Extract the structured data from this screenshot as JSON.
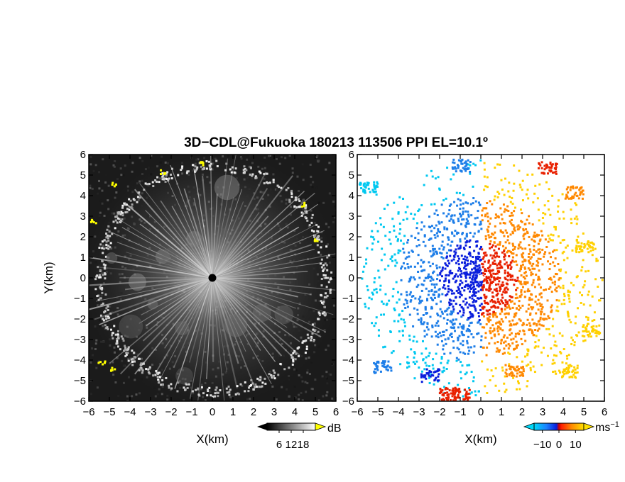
{
  "title": "3D−CDL@Fukuoka 180213 113506 PPI EL=10.1º",
  "chart_data": [
    {
      "type": "heatmap",
      "panel": "left",
      "variable": "backscatter intensity",
      "xlabel": "X(km)",
      "ylabel": "Y(km)",
      "xlim": [
        -6,
        6
      ],
      "ylim": [
        -6,
        6
      ],
      "x_ticks": [
        -6,
        -5,
        -4,
        -3,
        -2,
        -1,
        0,
        1,
        2,
        3,
        4,
        5,
        6
      ],
      "y_ticks": [
        -6,
        -5,
        -4,
        -3,
        -2,
        -1,
        0,
        1,
        2,
        3,
        4,
        5,
        6
      ],
      "colormap": "grayscale (black to white), saturated values yellow",
      "colorbar": {
        "unit": "dB",
        "ticks": [
          6,
          12,
          18
        ],
        "range": [
          0,
          24
        ]
      },
      "features": {
        "radial_streaks_from_origin": true,
        "echo_ring_radius_km": 5.5,
        "radar_position": [
          0,
          0
        ]
      }
    },
    {
      "type": "heatmap",
      "panel": "right",
      "variable": "Doppler radial velocity",
      "xlabel": "X(km)",
      "xlim": [
        -6,
        6
      ],
      "ylim": [
        -6,
        6
      ],
      "x_ticks": [
        -6,
        -5,
        -4,
        -3,
        -2,
        -1,
        0,
        1,
        2,
        3,
        4,
        5,
        6
      ],
      "y_ticks": [
        -6,
        -5,
        -4,
        -3,
        -2,
        -1,
        0,
        1,
        2,
        3,
        4,
        5,
        6
      ],
      "colormap": "diverging: cyan/blue (negative) to red/orange/yellow (positive)",
      "colorbar": {
        "unit": "ms",
        "unit_exponent": "−1",
        "ticks": [
          -10,
          0,
          10
        ],
        "range": [
          -15,
          15
        ]
      },
      "features": {
        "negative_velocity_side": "west (X<0)",
        "positive_velocity_side": "east (X>0)",
        "radar_position": [
          0,
          0
        ]
      }
    }
  ],
  "colors": {
    "neg_far": "#00c8f0",
    "neg_mid": "#1e7ee8",
    "neg_near": "#0a1edc",
    "pos_near": "#e82000",
    "pos_mid": "#ff8800",
    "pos_far": "#ffd000",
    "saturated": "#ffff00"
  }
}
